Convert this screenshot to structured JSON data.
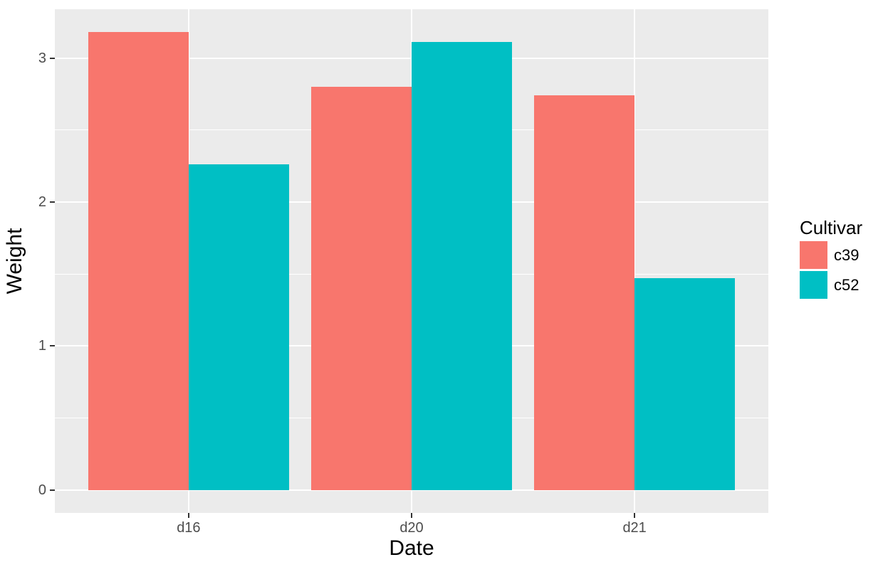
{
  "chart_data": {
    "type": "bar",
    "title": "",
    "xlabel": "Date",
    "ylabel": "Weight",
    "categories": [
      "d16",
      "d20",
      "d21"
    ],
    "series": [
      {
        "name": "c39",
        "color": "#F8766D",
        "values": [
          3.18,
          2.8,
          2.74
        ]
      },
      {
        "name": "c52",
        "color": "#00BFC4",
        "values": [
          2.26,
          3.11,
          1.47
        ]
      }
    ],
    "legend": {
      "title": "Cultivar",
      "position": "right",
      "entries": [
        "c39",
        "c52"
      ]
    },
    "axes": {
      "y_major_ticks": [
        0,
        1,
        2,
        3
      ],
      "y_minor_ticks": [
        0.5,
        1.5,
        2.5
      ],
      "ylim": [
        -0.159,
        3.339
      ],
      "x_positions": [
        1,
        2,
        3
      ],
      "xlim": [
        0.4,
        3.6
      ],
      "bar_width_units": 0.45,
      "grid": true
    },
    "style": {
      "background": "#FFFFFF",
      "panel_background": "#EBEBEB",
      "grid_color": "#FFFFFF",
      "tick_color": "#333333",
      "axis_text_color": "#4D4D4D",
      "axis_title_color": "#000000"
    }
  }
}
